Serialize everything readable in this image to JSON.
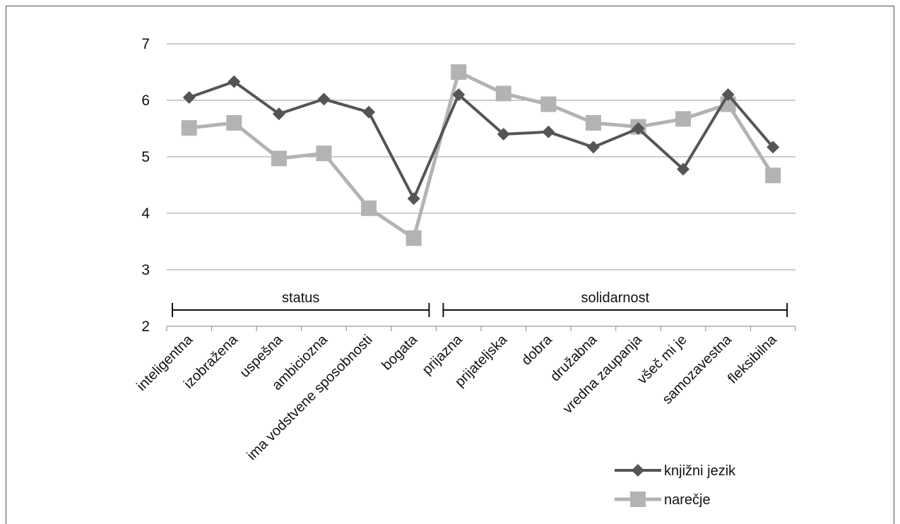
{
  "chart_data": {
    "type": "line",
    "categories": [
      "inteligentna",
      "izobražena",
      "uspešna",
      "ambiciozna",
      "ima vodstvene sposobnosti",
      "bogata",
      "prijazna",
      "prijateljska",
      "dobra",
      "družabna",
      "vredna zaupanja",
      "všeč mi je",
      "samozavestna",
      "fleksibilna"
    ],
    "series": [
      {
        "name": "knjižni jezik",
        "color": "#555555",
        "marker": "diamond",
        "values": [
          6.05,
          6.33,
          5.76,
          6.02,
          5.79,
          4.26,
          6.1,
          5.4,
          5.44,
          5.17,
          5.5,
          4.78,
          6.1,
          5.17
        ]
      },
      {
        "name": "narečje",
        "color": "#b3b3b3",
        "marker": "square",
        "values": [
          5.51,
          5.6,
          4.97,
          5.06,
          4.09,
          3.56,
          6.5,
          6.12,
          5.93,
          5.6,
          5.53,
          5.67,
          5.93,
          4.67
        ]
      }
    ],
    "y_ticks": [
      "2",
      "3",
      "4",
      "5",
      "6",
      "7"
    ],
    "ylim": [
      2,
      7
    ],
    "grid": true,
    "legend_position": "bottom-right",
    "groups": [
      {
        "label": "status",
        "from": 0,
        "to": 5
      },
      {
        "label": "solidarnost",
        "from": 6,
        "to": 13
      }
    ]
  }
}
